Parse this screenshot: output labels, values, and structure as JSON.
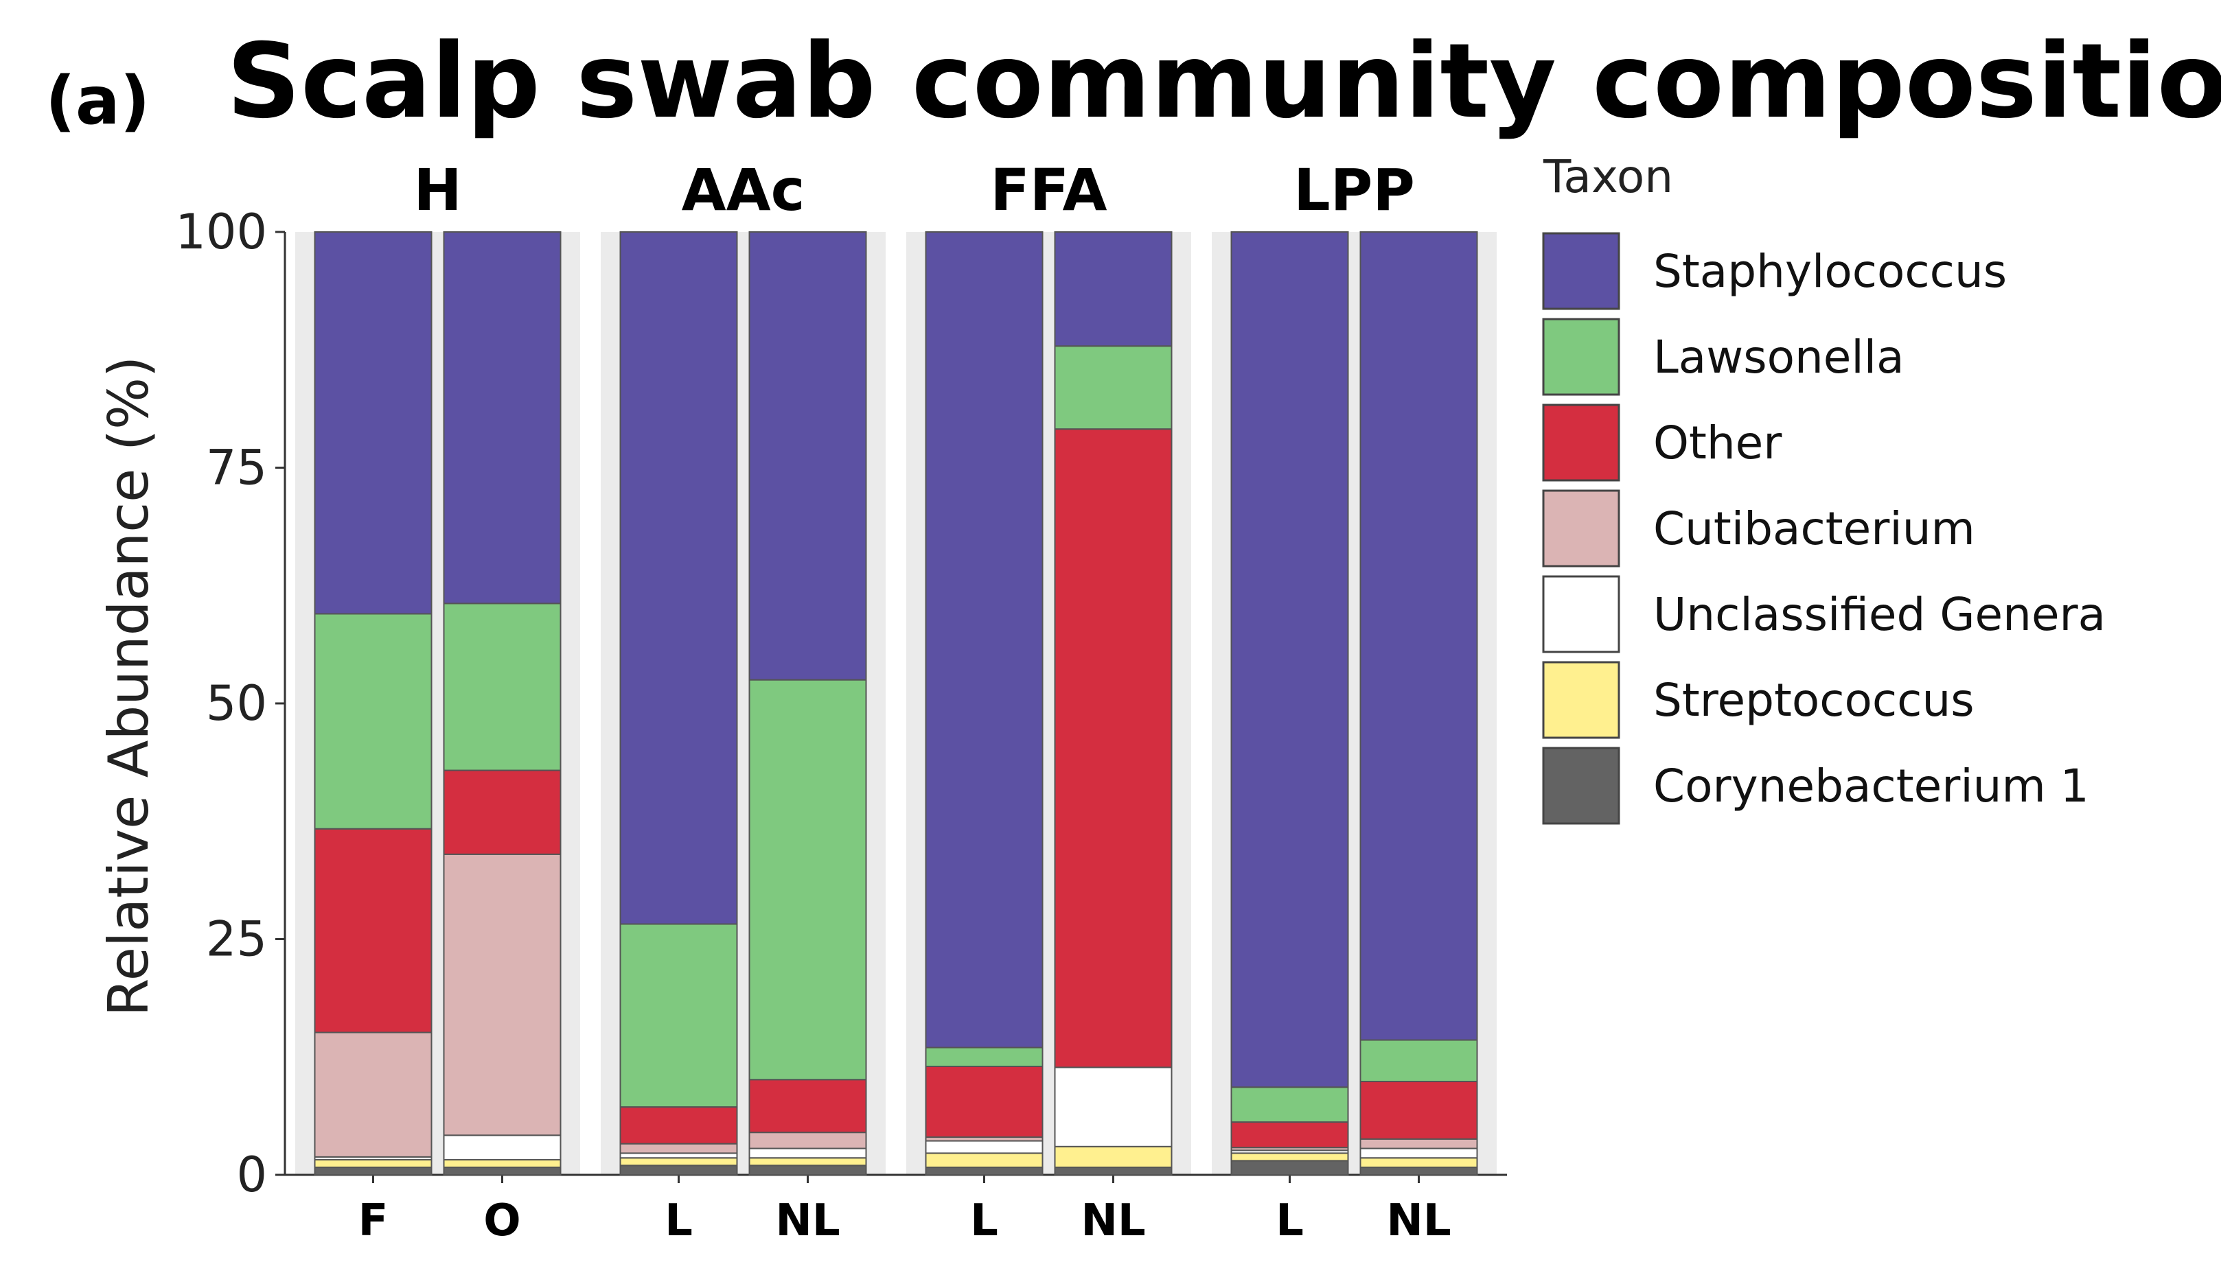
{
  "panel_label": "(a)",
  "chart_data": {
    "type": "bar",
    "stacked": true,
    "title": "Scalp swab community composition",
    "ylabel": "Relative Abundance (%)",
    "xlabel": "",
    "ylim": [
      0,
      100
    ],
    "yticks": [
      0,
      25,
      50,
      75,
      100
    ],
    "facets": [
      {
        "name": "H",
        "categories": [
          "F",
          "O"
        ]
      },
      {
        "name": "AAc",
        "categories": [
          "L",
          "NL"
        ]
      },
      {
        "name": "FFA",
        "categories": [
          "L",
          "NL"
        ]
      },
      {
        "name": "LPP",
        "categories": [
          "L",
          "NL"
        ]
      }
    ],
    "legend_title": "Taxon",
    "legend_position": "right",
    "series": [
      {
        "name": "Corynebacterium 1",
        "color": "#636363",
        "values": [
          0.8,
          0.8,
          1.0,
          1.0,
          0.8,
          0.8,
          1.5,
          0.8
        ]
      },
      {
        "name": "Streptococcus",
        "color": "#FFF08F",
        "values": [
          0.8,
          0.8,
          0.8,
          0.8,
          1.5,
          2.2,
          0.8,
          1.0
        ]
      },
      {
        "name": "Unclassified Genera",
        "color": "#FFFFFF",
        "values": [
          0.3,
          2.6,
          0.5,
          1.0,
          1.3,
          8.4,
          0.3,
          1.0
        ]
      },
      {
        "name": "Cutibacterium",
        "color": "#DBB4B4",
        "values": [
          13.2,
          29.8,
          1.0,
          1.7,
          0.4,
          0.0,
          0.3,
          1.0
        ]
      },
      {
        "name": "Other",
        "color": "#D42E40",
        "values": [
          21.6,
          8.9,
          3.9,
          5.6,
          7.5,
          67.7,
          2.7,
          6.1
        ]
      },
      {
        "name": "Lawsonella",
        "color": "#7FC97F",
        "values": [
          22.8,
          17.7,
          19.4,
          42.4,
          2.0,
          8.8,
          3.7,
          4.4
        ]
      },
      {
        "name": "Staphylococcus",
        "color": "#5C51A3",
        "values": [
          40.5,
          39.4,
          73.4,
          47.5,
          86.5,
          12.1,
          90.7,
          85.7
        ]
      }
    ],
    "legend_order": [
      "Staphylococcus",
      "Lawsonella",
      "Other",
      "Cutibacterium",
      "Unclassified Genera",
      "Streptococcus",
      "Corynebacterium 1"
    ]
  }
}
